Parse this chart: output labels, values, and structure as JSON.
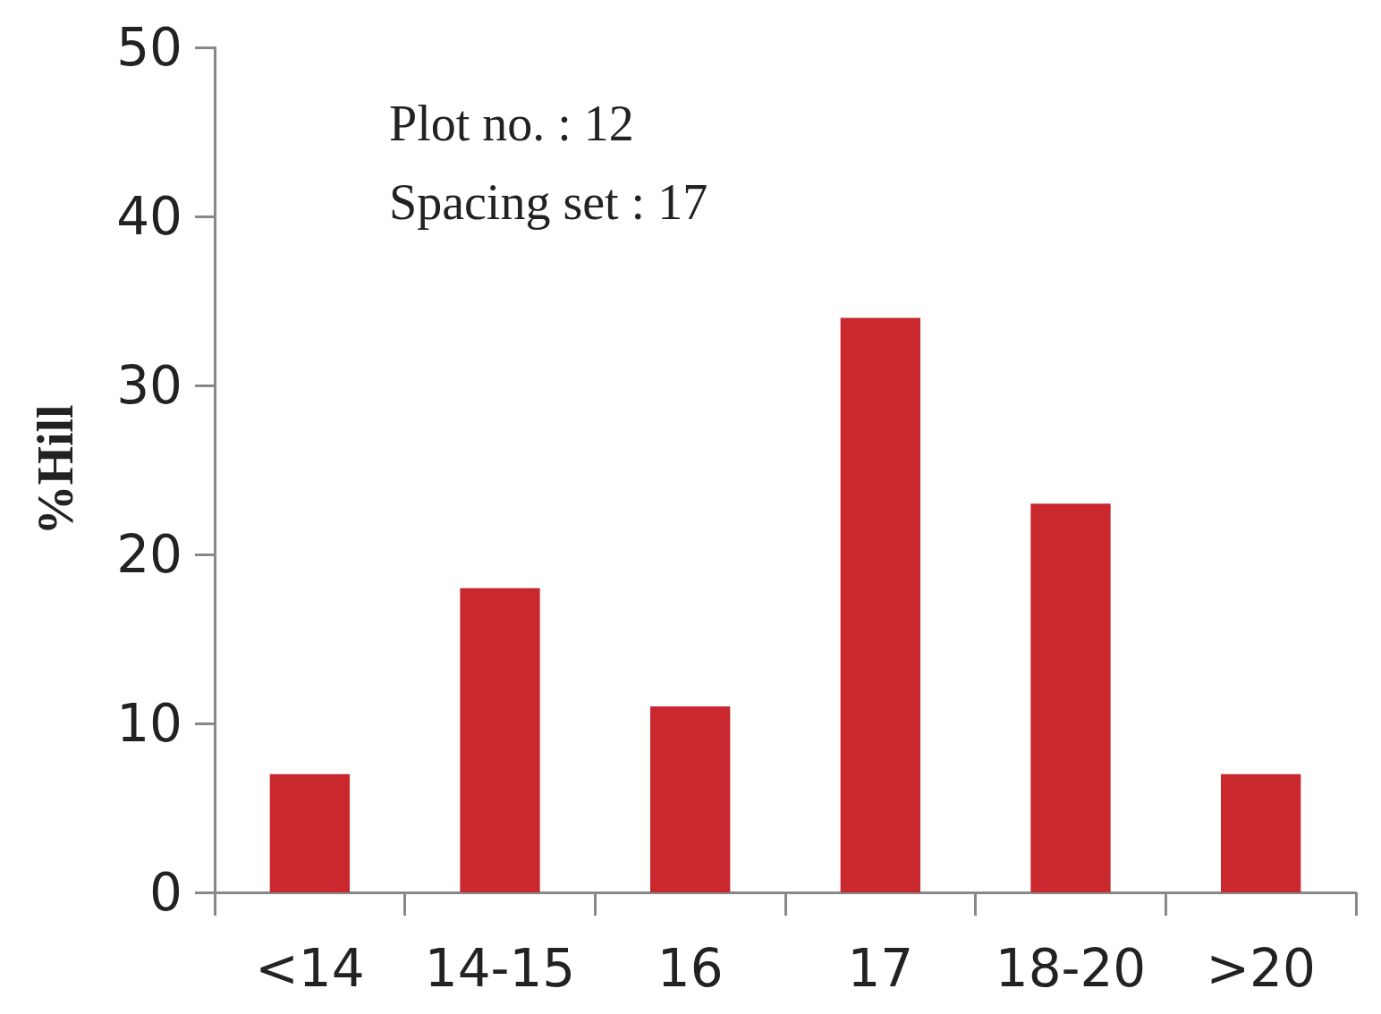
{
  "chart_data": {
    "type": "bar",
    "ylabel": "%Hill",
    "categories": [
      "<14",
      "14-15",
      "16",
      "17",
      "18-20",
      ">20"
    ],
    "values": [
      7,
      18,
      11,
      34,
      23,
      7
    ],
    "color": "#c8282e",
    "ylim": [
      0,
      50
    ],
    "yticks": [
      0,
      10,
      20,
      30,
      40,
      50
    ],
    "grid": false,
    "annotations": [
      "Plot no. : 12",
      "Spacing set : 17"
    ]
  }
}
